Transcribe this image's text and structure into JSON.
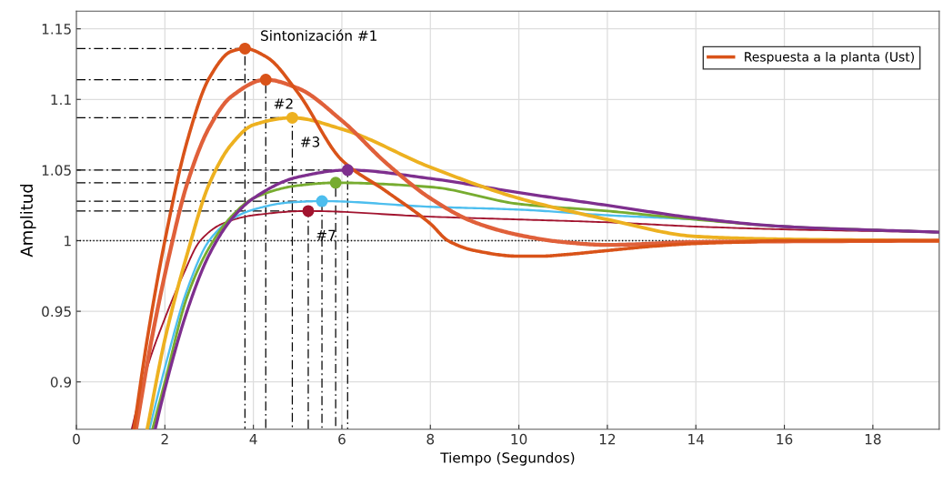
{
  "chart_data": {
    "type": "line",
    "xlabel": "Tiempo (Segundos)",
    "ylabel": "Amplitud",
    "xlim": [
      0,
      19.5
    ],
    "ylim": [
      0.8665,
      1.1625
    ],
    "xticks": [
      0,
      2,
      4,
      6,
      8,
      10,
      12,
      14,
      16,
      18
    ],
    "yticks": [
      0.9,
      0.95,
      1,
      1.05,
      1.1,
      1.15
    ],
    "grid": true,
    "legend": "top right",
    "ref_lines": [
      {
        "axis": "y",
        "value": 1,
        "color": "#000000",
        "line_style": "dotted"
      }
    ],
    "series": [
      {
        "name": "Respuesta a la planta (Ust)",
        "color": "#d95319",
        "x": [
          1.3,
          1.6,
          2.0,
          2.5,
          3.0,
          3.5,
          3.81,
          4.3,
          5,
          6,
          7,
          8,
          8.4,
          9,
          10,
          10.5,
          11,
          12,
          13,
          14,
          15,
          16,
          19.5
        ],
        "values": [
          0.8665,
          0.93,
          1.0,
          1.07,
          1.115,
          1.134,
          1.136,
          1.13,
          1.105,
          1.057,
          1.035,
          1.012,
          1.0,
          0.993,
          0.989,
          0.989,
          0.99,
          0.993,
          0.996,
          0.998,
          0.999,
          1.0,
          1.0
        ]
      },
      {
        "color": "#e0603a",
        "x": [
          1.35,
          1.7,
          2.1,
          2.5,
          3,
          3.5,
          4.28,
          5,
          6,
          7,
          8,
          9,
          10,
          11,
          12,
          14,
          19.5
        ],
        "values": [
          0.8665,
          0.93,
          0.99,
          1.04,
          1.08,
          1.102,
          1.114,
          1.108,
          1.085,
          1.055,
          1.03,
          1.013,
          1.004,
          0.999,
          0.997,
          0.999,
          1.0
        ]
      },
      {
        "color": "#edb120",
        "x": [
          1.6,
          2,
          2.5,
          3,
          3.5,
          4,
          4.88,
          6,
          8,
          10,
          12,
          14,
          16,
          19.5
        ],
        "values": [
          0.8665,
          0.93,
          0.99,
          1.04,
          1.068,
          1.082,
          1.087,
          1.079,
          1.052,
          1.03,
          1.015,
          1.003,
          1.001,
          1.0
        ]
      },
      {
        "color": "#7e2f8e",
        "x": [
          1.78,
          2,
          2.5,
          3,
          3.5,
          4,
          5,
          6.13,
          8,
          10,
          12,
          14,
          16,
          19.5
        ],
        "values": [
          0.8665,
          0.895,
          0.95,
          0.99,
          1.015,
          1.03,
          1.045,
          1.05,
          1.044,
          1.034,
          1.025,
          1.016,
          1.01,
          1.006
        ]
      },
      {
        "color": "#77ac30",
        "x": [
          1.72,
          2,
          2.5,
          3,
          3.5,
          4,
          5,
          5.86,
          8,
          10,
          12,
          14,
          16,
          19.5
        ],
        "values": [
          0.8665,
          0.9,
          0.96,
          0.995,
          1.017,
          1.03,
          1.039,
          1.041,
          1.038,
          1.026,
          1.021,
          1.015,
          1.01,
          1.006
        ]
      },
      {
        "color": "#4dbeee",
        "x": [
          1.65,
          2,
          2.5,
          3,
          3.5,
          4,
          4.8,
          5.55,
          8,
          10,
          12,
          14,
          16,
          19.5
        ],
        "values": [
          0.8665,
          0.91,
          0.965,
          1.0,
          1.015,
          1.022,
          1.027,
          1.028,
          1.024,
          1.022,
          1.018,
          1.015,
          1.01,
          1.006
        ]
      },
      {
        "color": "#a2142f",
        "x": [
          1.25,
          1.6,
          2,
          2.4,
          2.8,
          3.3,
          4,
          5.24,
          8,
          10,
          12,
          14,
          16,
          19.5
        ],
        "values": [
          0.8665,
          0.91,
          0.945,
          0.975,
          1.0,
          1.012,
          1.018,
          1.021,
          1.017,
          1.015,
          1.013,
          1.01,
          1.008,
          1.006
        ]
      },
      {
        "color": "#000000",
        "line_style": "dashed",
        "x": [
          0,
          3.81,
          3.81
        ],
        "values": [
          1.136,
          1.136,
          0.8665
        ]
      },
      {
        "color": "#000000",
        "line_style": "dashed",
        "x": [
          0,
          4.28,
          4.28
        ],
        "values": [
          1.114,
          1.114,
          0.8665
        ]
      },
      {
        "color": "#000000",
        "line_style": "dashed",
        "x": [
          0,
          4.88,
          4.88
        ],
        "values": [
          1.087,
          1.087,
          0.8665
        ]
      },
      {
        "color": "#000000",
        "line_style": "dashed",
        "x": [
          0,
          6.13,
          6.13
        ],
        "values": [
          1.05,
          1.05,
          0.8665
        ]
      },
      {
        "color": "#000000",
        "line_style": "dashed",
        "x": [
          0,
          5.86,
          5.86
        ],
        "values": [
          1.041,
          1.041,
          0.8665
        ]
      },
      {
        "color": "#000000",
        "line_style": "dashed",
        "x": [
          0,
          5.55,
          5.55
        ],
        "values": [
          1.028,
          1.028,
          0.8665
        ]
      },
      {
        "color": "#000000",
        "line_style": "dashed",
        "x": [
          0,
          5.24,
          5.24
        ],
        "values": [
          1.021,
          1.021,
          0.8665
        ]
      },
      {
        "type": "scatter",
        "marker": "circle",
        "x": [
          3.81,
          4.28,
          4.88,
          6.13,
          5.86,
          5.55,
          5.24
        ],
        "values": [
          1.136,
          1.114,
          1.087,
          1.05,
          1.041,
          1.028,
          1.021
        ],
        "colors": [
          "#d95319",
          "#d95319",
          "#edb120",
          "#7e2f8e",
          "#77ac30",
          "#4dbeee",
          "#a2142f"
        ]
      }
    ],
    "annotations": [
      {
        "text": "Sintonización #1",
        "x": 3.81,
        "y": 1.136
      },
      {
        "text": "#2",
        "x": 4.28,
        "y": 1.114
      },
      {
        "text": "#3",
        "x": 4.88,
        "y": 1.087
      },
      {
        "text": "#7",
        "x": 5.24,
        "y": 1.021
      }
    ]
  }
}
